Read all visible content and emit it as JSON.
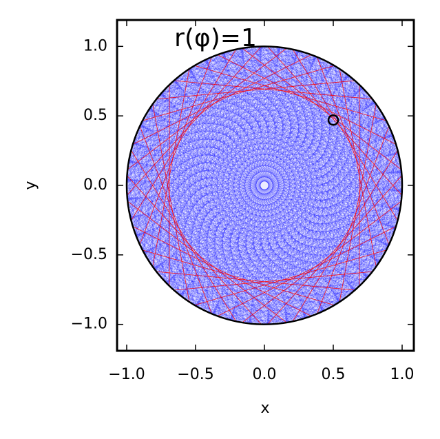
{
  "chart_data": {
    "type": "billiard",
    "annotation": "r(φ)=1",
    "xlabel": "x",
    "ylabel": "y",
    "xlim": [
      -1.07,
      1.085
    ],
    "ylim": [
      -1.19,
      1.19
    ],
    "xticks": [
      {
        "value": -1,
        "label": "−1.0"
      },
      {
        "value": -0.5,
        "label": "−0.5"
      },
      {
        "value": 0,
        "label": "0.0"
      },
      {
        "value": 0.5,
        "label": "0.5"
      },
      {
        "value": 1,
        "label": "1.0"
      }
    ],
    "yticks": [
      {
        "value": -1,
        "label": "−1.0"
      },
      {
        "value": -0.5,
        "label": "−0.5"
      },
      {
        "value": 0,
        "label": "0.0"
      },
      {
        "value": 0.5,
        "label": "0.5"
      },
      {
        "value": 1,
        "label": "1.0"
      }
    ],
    "boundary_radius": 1,
    "boundary_color": "#000000",
    "series": [
      {
        "color": "#0000ff",
        "values": [
          0.03,
          0.06,
          0.1,
          0.14,
          0.18,
          0.22,
          0.26,
          0.3,
          0.34,
          0.38,
          0.42,
          0.46,
          0.5,
          0.54,
          0.58,
          0.62,
          0.66,
          0.7,
          0.74,
          0.78,
          0.82,
          0.86,
          0.9,
          0.94,
          0.97
        ]
      },
      {
        "color": "#ff0000",
        "values": [
          0.69
        ]
      }
    ],
    "marker": {
      "x": 0.5,
      "y": 0.47,
      "color": "#000000"
    }
  }
}
